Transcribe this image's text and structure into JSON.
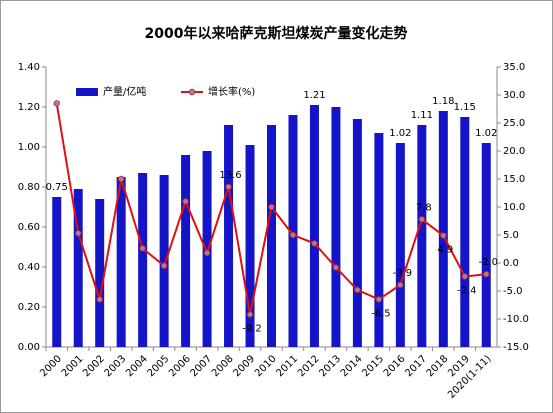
{
  "chart_data": {
    "type": "bar_line",
    "title": "2000年以来哈萨克斯坦煤炭产量变化走势",
    "categories": [
      "2000",
      "2001",
      "2002",
      "2003",
      "2004",
      "2005",
      "2006",
      "2007",
      "2008",
      "2009",
      "2010",
      "2011",
      "2012",
      "2013",
      "2014",
      "2015",
      "2016",
      "2017",
      "2018",
      "2019",
      "2020(1-11)"
    ],
    "series": [
      {
        "name": "产量/亿吨",
        "type": "bar",
        "color": "#1414c8",
        "label_color": "#2a2ad0",
        "values": [
          0.75,
          0.79,
          0.74,
          0.85,
          0.87,
          0.86,
          0.96,
          0.98,
          1.11,
          1.01,
          1.11,
          1.16,
          1.21,
          1.2,
          1.14,
          1.07,
          1.02,
          1.11,
          1.18,
          1.15,
          1.02
        ],
        "value_labels": [
          "0.75",
          null,
          null,
          null,
          null,
          null,
          null,
          null,
          null,
          null,
          null,
          null,
          "1.21",
          null,
          null,
          null,
          "1.02",
          "1.11",
          "1.18",
          "1.15",
          "1.02"
        ]
      },
      {
        "name": "增长率(%)",
        "type": "line",
        "axis": "y2",
        "color": "#e01010",
        "marker_color": "#8a8aa8",
        "label_color": "#e01010",
        "values": [
          28.5,
          5.3,
          -6.5,
          15.0,
          2.6,
          -0.5,
          11.0,
          1.8,
          13.6,
          -9.2,
          10.0,
          5.0,
          3.5,
          -0.8,
          -4.8,
          -6.5,
          -3.9,
          7.8,
          4.9,
          -2.4,
          -2.0
        ],
        "value_labels": [
          null,
          null,
          null,
          null,
          null,
          null,
          null,
          null,
          "13.6",
          "-9.2",
          null,
          null,
          null,
          null,
          null,
          "-6.5",
          "-3.9",
          "7.8",
          "4.9",
          "-2.4",
          "-2.0"
        ]
      }
    ],
    "ylim": [
      0,
      1.4
    ],
    "yticks": [
      {
        "value": 0,
        "label": "0.00"
      },
      {
        "value": 0.2,
        "label": "0.20"
      },
      {
        "value": 0.4,
        "label": "0.40"
      },
      {
        "value": 0.6,
        "label": "0.60"
      },
      {
        "value": 0.8,
        "label": "0.80"
      },
      {
        "value": 1,
        "label": "1.00"
      },
      {
        "value": 1.2,
        "label": "1.20"
      },
      {
        "value": 1.4,
        "label": "1.40"
      }
    ],
    "y2lim": [
      -15,
      35
    ],
    "y2ticks": [
      {
        "value": -15,
        "label": "-15.0"
      },
      {
        "value": -10,
        "label": "-10.0"
      },
      {
        "value": -5,
        "label": "-5.0"
      },
      {
        "value": 0,
        "label": "0.0"
      },
      {
        "value": 5,
        "label": "5.0"
      },
      {
        "value": 10,
        "label": "10.0"
      },
      {
        "value": 15,
        "label": "15.0"
      },
      {
        "value": 20,
        "label": "20.0"
      },
      {
        "value": 25,
        "label": "25.0"
      },
      {
        "value": 30,
        "label": "30.0"
      },
      {
        "value": 35,
        "label": "35.0"
      }
    ],
    "legend": "top-left"
  }
}
